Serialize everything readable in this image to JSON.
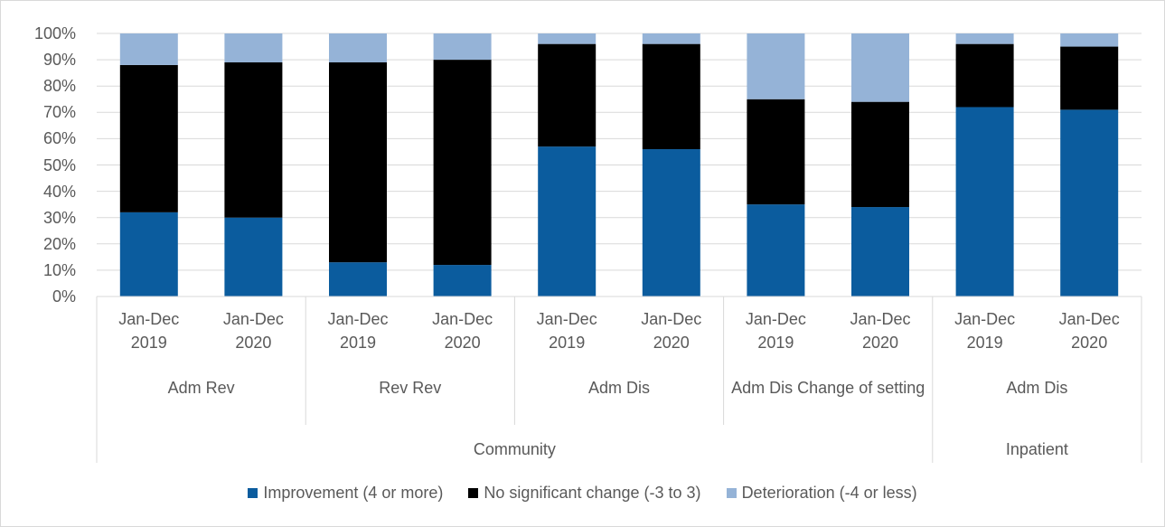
{
  "chart_data": {
    "type": "stacked_bar",
    "categories": [
      "Jan-Dec 2019",
      "Jan-Dec 2020",
      "Jan-Dec 2019",
      "Jan-Dec 2020",
      "Jan-Dec 2019",
      "Jan-Dec 2020",
      "Jan-Dec 2019",
      "Jan-Dec 2020",
      "Jan-Dec 2019",
      "Jan-Dec 2020"
    ],
    "groups": [
      {
        "label": "Adm Rev",
        "count": 2
      },
      {
        "label": "Rev Rev",
        "count": 2
      },
      {
        "label": "Adm Dis",
        "count": 2
      },
      {
        "label": "Adm Dis Change of setting",
        "count": 2
      },
      {
        "label": "Adm Dis",
        "count": 2
      }
    ],
    "supergroups": [
      {
        "label": "Community",
        "count": 8
      },
      {
        "label": "Inpatient",
        "count": 2
      }
    ],
    "series": [
      {
        "name": "Improvement (4 or more)",
        "color": "#0b5c9e",
        "values": [
          32,
          30,
          13,
          12,
          57,
          56,
          35,
          34,
          72,
          71
        ]
      },
      {
        "name": "No significant change (-3 to 3)",
        "color": "#000000",
        "values": [
          56,
          59,
          76,
          78,
          39,
          40,
          40,
          40,
          24,
          24
        ]
      },
      {
        "name": "Deterioration (-4 or less)",
        "color": "#95b3d7",
        "values": [
          12,
          11,
          11,
          10,
          4,
          4,
          25,
          26,
          4,
          5
        ]
      }
    ],
    "ylim": [
      0,
      100
    ],
    "yticks": [
      {
        "value": 0,
        "label": "0%"
      },
      {
        "value": 10,
        "label": "10%"
      },
      {
        "value": 20,
        "label": "20%"
      },
      {
        "value": 30,
        "label": "30%"
      },
      {
        "value": 40,
        "label": "40%"
      },
      {
        "value": 50,
        "label": "50%"
      },
      {
        "value": 60,
        "label": "60%"
      },
      {
        "value": 70,
        "label": "70%"
      },
      {
        "value": 80,
        "label": "80%"
      },
      {
        "value": 90,
        "label": "90%"
      },
      {
        "value": 100,
        "label": "100%"
      }
    ],
    "grid": true,
    "legend": "bottom"
  }
}
